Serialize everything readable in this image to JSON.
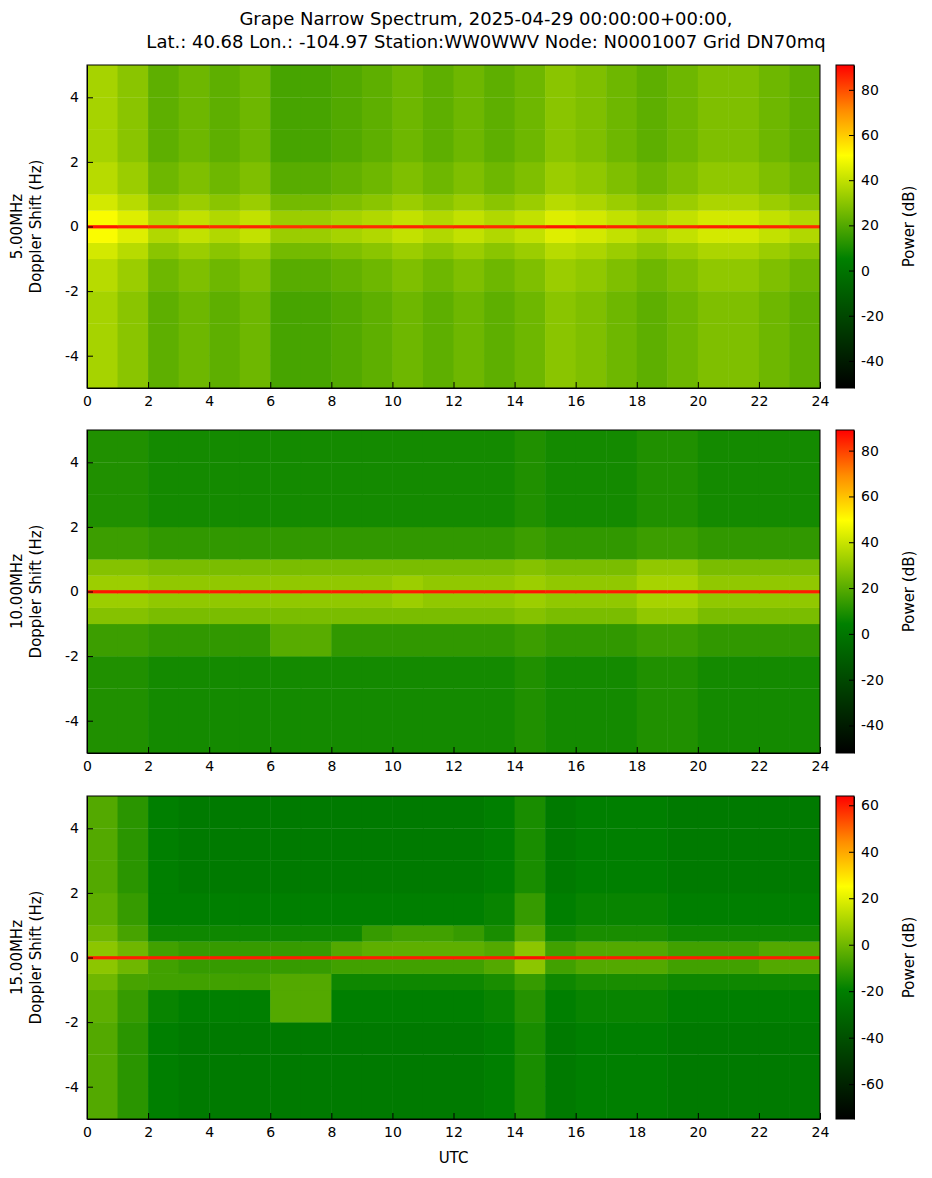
{
  "chart_data": [
    {
      "type": "heatmap",
      "title": "Grape Narrow Spectrum, 2025-04-29 00:00:00+00:00,",
      "subtitle": "Lat.: 40.68 Lon.: -104.97 Station:WW0WWV Node: N0001007 Grid DN70mq",
      "ylabel": [
        "5.00MHz",
        "Doppler Shift (Hz)"
      ],
      "xlim": [
        0,
        24
      ],
      "xticks": [
        0,
        2,
        4,
        6,
        8,
        10,
        12,
        14,
        16,
        18,
        20,
        22,
        24
      ],
      "ylim": [
        -5,
        5
      ],
      "yticks": [
        -4,
        -2,
        0,
        2,
        4
      ],
      "x_edges": [
        0,
        1,
        2,
        3,
        4,
        5,
        6,
        7,
        8,
        9,
        10,
        11,
        12,
        13,
        14,
        15,
        16,
        17,
        18,
        19,
        20,
        21,
        22,
        23,
        24
      ],
      "y_edges": [
        -5,
        -4,
        -3,
        -2,
        -1,
        -0.5,
        -0.05,
        0.05,
        0.5,
        1,
        2,
        3,
        4,
        5
      ],
      "cells": [
        [
          35,
          30,
          22,
          25,
          22,
          25,
          18,
          18,
          20,
          22,
          25,
          22,
          25,
          22,
          25,
          30,
          28,
          25,
          22,
          25,
          28,
          28,
          25,
          22
        ],
        [
          35,
          30,
          22,
          25,
          22,
          25,
          18,
          18,
          20,
          22,
          25,
          22,
          25,
          22,
          25,
          30,
          28,
          25,
          22,
          25,
          28,
          28,
          25,
          22
        ],
        [
          35,
          30,
          22,
          25,
          22,
          25,
          18,
          18,
          20,
          22,
          25,
          22,
          25,
          22,
          25,
          30,
          28,
          25,
          22,
          25,
          28,
          28,
          25,
          22
        ],
        [
          38,
          33,
          25,
          28,
          25,
          28,
          21,
          21,
          23,
          25,
          28,
          25,
          28,
          25,
          28,
          33,
          31,
          28,
          25,
          28,
          31,
          31,
          28,
          25
        ],
        [
          43,
          38,
          30,
          33,
          30,
          33,
          26,
          26,
          28,
          30,
          33,
          30,
          33,
          30,
          33,
          38,
          36,
          33,
          30,
          33,
          36,
          36,
          33,
          30
        ],
        [
          50,
          45,
          37,
          40,
          37,
          40,
          33,
          33,
          35,
          37,
          40,
          37,
          40,
          37,
          40,
          45,
          43,
          40,
          37,
          40,
          43,
          43,
          40,
          37
        ],
        [
          88,
          86,
          85,
          86,
          85,
          86,
          84,
          84,
          85,
          85,
          86,
          85,
          86,
          85,
          86,
          88,
          87,
          86,
          85,
          86,
          87,
          87,
          86,
          85
        ],
        [
          50,
          45,
          37,
          40,
          37,
          40,
          33,
          33,
          35,
          37,
          40,
          37,
          40,
          37,
          40,
          45,
          43,
          40,
          37,
          40,
          43,
          43,
          40,
          37
        ],
        [
          43,
          38,
          30,
          33,
          30,
          33,
          26,
          26,
          28,
          30,
          33,
          30,
          33,
          30,
          33,
          38,
          36,
          33,
          30,
          33,
          36,
          36,
          33,
          30
        ],
        [
          38,
          33,
          25,
          28,
          25,
          28,
          21,
          21,
          23,
          25,
          28,
          25,
          28,
          25,
          28,
          33,
          31,
          28,
          25,
          28,
          31,
          31,
          28,
          25
        ],
        [
          35,
          30,
          22,
          25,
          22,
          25,
          18,
          18,
          20,
          22,
          25,
          22,
          25,
          22,
          25,
          30,
          28,
          25,
          22,
          25,
          28,
          28,
          25,
          22
        ],
        [
          35,
          30,
          22,
          25,
          22,
          25,
          18,
          18,
          20,
          22,
          25,
          22,
          25,
          22,
          25,
          30,
          28,
          25,
          22,
          25,
          28,
          28,
          25,
          22
        ],
        [
          35,
          30,
          22,
          25,
          22,
          25,
          18,
          18,
          20,
          22,
          25,
          22,
          25,
          22,
          25,
          30,
          28,
          25,
          22,
          25,
          28,
          28,
          25,
          22
        ]
      ],
      "colorbar": {
        "label": "Power (dB)",
        "range": [
          -52,
          91
        ],
        "ticks": [
          -40,
          -20,
          0,
          20,
          40,
          60,
          80
        ]
      }
    },
    {
      "type": "heatmap",
      "ylabel": [
        "10.00MHz",
        "Doppler Shift (Hz)"
      ],
      "xlim": [
        0,
        24
      ],
      "xticks": [
        0,
        2,
        4,
        6,
        8,
        10,
        12,
        14,
        16,
        18,
        20,
        22,
        24
      ],
      "ylim": [
        -5,
        5
      ],
      "yticks": [
        -4,
        -2,
        0,
        2,
        4
      ],
      "x_edges": [
        0,
        1,
        2,
        3,
        4,
        5,
        6,
        7,
        8,
        9,
        10,
        11,
        12,
        13,
        14,
        15,
        16,
        17,
        18,
        19,
        20,
        21,
        22,
        23,
        24
      ],
      "y_edges": [
        -5,
        -4,
        -3,
        -2,
        -1,
        -0.5,
        -0.05,
        0.05,
        0.5,
        1,
        2,
        3,
        4,
        5
      ],
      "cells": [
        [
          10,
          10,
          8,
          8,
          8,
          8,
          8,
          8,
          8,
          8,
          8,
          8,
          8,
          8,
          10,
          8,
          8,
          8,
          10,
          10,
          8,
          8,
          8,
          8
        ],
        [
          10,
          10,
          8,
          8,
          8,
          8,
          8,
          8,
          8,
          8,
          8,
          8,
          8,
          8,
          10,
          8,
          8,
          8,
          10,
          10,
          8,
          8,
          8,
          8
        ],
        [
          10,
          10,
          8,
          8,
          8,
          8,
          8,
          8,
          8,
          8,
          8,
          8,
          8,
          8,
          10,
          8,
          8,
          8,
          10,
          10,
          8,
          8,
          8,
          8
        ],
        [
          15,
          15,
          13,
          13,
          13,
          13,
          20,
          20,
          13,
          13,
          13,
          13,
          13,
          13,
          15,
          13,
          13,
          13,
          15,
          15,
          13,
          13,
          13,
          13
        ],
        [
          28,
          28,
          26,
          26,
          26,
          26,
          26,
          26,
          26,
          26,
          26,
          26,
          26,
          26,
          28,
          26,
          26,
          26,
          30,
          30,
          26,
          26,
          26,
          26
        ],
        [
          32,
          32,
          30,
          30,
          30,
          30,
          30,
          30,
          30,
          30,
          32,
          30,
          30,
          30,
          32,
          30,
          30,
          30,
          34,
          34,
          30,
          30,
          30,
          30
        ],
        [
          86,
          86,
          85,
          85,
          85,
          85,
          85,
          85,
          85,
          85,
          85,
          85,
          85,
          85,
          86,
          85,
          85,
          85,
          86,
          86,
          85,
          85,
          85,
          85
        ],
        [
          32,
          32,
          30,
          30,
          30,
          30,
          30,
          30,
          30,
          30,
          32,
          30,
          30,
          30,
          32,
          30,
          30,
          30,
          34,
          34,
          30,
          30,
          30,
          30
        ],
        [
          28,
          28,
          26,
          26,
          26,
          26,
          26,
          26,
          26,
          26,
          26,
          26,
          26,
          26,
          28,
          26,
          26,
          26,
          30,
          30,
          26,
          26,
          26,
          26
        ],
        [
          15,
          15,
          13,
          13,
          13,
          13,
          13,
          13,
          13,
          13,
          13,
          13,
          13,
          13,
          15,
          13,
          13,
          13,
          15,
          15,
          13,
          13,
          13,
          13
        ],
        [
          10,
          10,
          8,
          8,
          8,
          8,
          8,
          8,
          8,
          8,
          8,
          8,
          8,
          8,
          10,
          8,
          8,
          8,
          10,
          10,
          8,
          8,
          8,
          8
        ],
        [
          10,
          10,
          8,
          8,
          8,
          8,
          8,
          8,
          8,
          8,
          8,
          8,
          8,
          8,
          10,
          8,
          8,
          8,
          10,
          10,
          8,
          8,
          8,
          8
        ],
        [
          10,
          10,
          8,
          8,
          8,
          8,
          8,
          8,
          8,
          8,
          8,
          8,
          8,
          8,
          10,
          8,
          8,
          8,
          10,
          10,
          8,
          8,
          8,
          8
        ]
      ],
      "colorbar": {
        "label": "Power (dB)",
        "range": [
          -52,
          89
        ],
        "ticks": [
          -40,
          -20,
          0,
          20,
          40,
          60,
          80
        ]
      }
    },
    {
      "type": "heatmap",
      "ylabel": [
        "15.00MHz",
        "Doppler Shift (Hz)"
      ],
      "xlabel": "UTC",
      "xlim": [
        0,
        24
      ],
      "xticks": [
        0,
        2,
        4,
        6,
        8,
        10,
        12,
        14,
        16,
        18,
        20,
        22,
        24
      ],
      "ylim": [
        -5,
        5
      ],
      "yticks": [
        -4,
        -2,
        0,
        2,
        4
      ],
      "x_edges": [
        0,
        1,
        2,
        3,
        4,
        5,
        6,
        7,
        8,
        9,
        10,
        11,
        12,
        13,
        14,
        15,
        16,
        17,
        18,
        19,
        20,
        21,
        22,
        23,
        24
      ],
      "y_edges": [
        -5,
        -4,
        -3,
        -2,
        -1,
        -0.5,
        -0.05,
        0.05,
        0.5,
        1,
        2,
        3,
        4,
        5
      ],
      "cells": [
        [
          -5,
          -12,
          -20,
          -22,
          -22,
          -22,
          -22,
          -22,
          -22,
          -22,
          -22,
          -22,
          -22,
          -20,
          -15,
          -22,
          -20,
          -20,
          -20,
          -22,
          -22,
          -22,
          -22,
          -22
        ],
        [
          -5,
          -12,
          -20,
          -22,
          -22,
          -22,
          -22,
          -22,
          -22,
          -22,
          -22,
          -22,
          -22,
          -20,
          -15,
          -22,
          -20,
          -20,
          -20,
          -22,
          -22,
          -22,
          -22,
          -22
        ],
        [
          -5,
          -12,
          -20,
          -22,
          -22,
          -22,
          -22,
          -22,
          -22,
          -22,
          -22,
          -22,
          -22,
          -20,
          -15,
          -22,
          -20,
          -20,
          -20,
          -22,
          -22,
          -22,
          -22,
          -22
        ],
        [
          -3,
          -10,
          -18,
          -20,
          -20,
          -20,
          -5,
          -5,
          -20,
          -20,
          -20,
          -20,
          -20,
          -18,
          -13,
          -20,
          -18,
          -18,
          -18,
          -20,
          -20,
          -20,
          -20,
          -20
        ],
        [
          0,
          -7,
          -8,
          -8,
          -8,
          -8,
          -5,
          -5,
          -17,
          -17,
          -17,
          -17,
          -17,
          -15,
          -10,
          -17,
          -15,
          -15,
          -15,
          -17,
          -17,
          -17,
          -17,
          -17
        ],
        [
          5,
          0,
          -8,
          -10,
          -10,
          -10,
          -10,
          -10,
          -8,
          -8,
          -8,
          -8,
          -8,
          -5,
          5,
          -8,
          -5,
          -5,
          -5,
          -8,
          -8,
          -8,
          -5,
          -5
        ],
        [
          60,
          60,
          60,
          60,
          60,
          60,
          60,
          60,
          60,
          60,
          60,
          60,
          60,
          60,
          62,
          60,
          60,
          60,
          60,
          60,
          60,
          60,
          60,
          60
        ],
        [
          5,
          0,
          -8,
          -10,
          -10,
          -10,
          -10,
          -10,
          -5,
          -3,
          -3,
          -3,
          -3,
          -5,
          5,
          -8,
          -5,
          -5,
          -5,
          -8,
          -8,
          -8,
          -5,
          -5
        ],
        [
          0,
          -7,
          -17,
          -17,
          -17,
          -17,
          -17,
          -17,
          -17,
          -10,
          -8,
          -8,
          -10,
          -15,
          -5,
          -17,
          -15,
          -15,
          -15,
          -17,
          -17,
          -17,
          -17,
          -17
        ],
        [
          -3,
          -10,
          -20,
          -20,
          -20,
          -20,
          -20,
          -20,
          -20,
          -20,
          -20,
          -20,
          -20,
          -18,
          -10,
          -20,
          -18,
          -18,
          -18,
          -20,
          -20,
          -20,
          -20,
          -20
        ],
        [
          -5,
          -12,
          -20,
          -22,
          -22,
          -22,
          -22,
          -22,
          -22,
          -22,
          -22,
          -22,
          -22,
          -20,
          -15,
          -22,
          -20,
          -20,
          -20,
          -22,
          -22,
          -22,
          -22,
          -22
        ],
        [
          -5,
          -12,
          -20,
          -22,
          -22,
          -22,
          -22,
          -22,
          -22,
          -22,
          -22,
          -22,
          -22,
          -20,
          -15,
          -22,
          -20,
          -20,
          -20,
          -22,
          -22,
          -22,
          -22,
          -22
        ],
        [
          -5,
          -12,
          -20,
          -22,
          -22,
          -22,
          -22,
          -22,
          -22,
          -22,
          -22,
          -22,
          -22,
          -20,
          -15,
          -22,
          -20,
          -20,
          -20,
          -22,
          -22,
          -22,
          -22,
          -22
        ]
      ],
      "colorbar": {
        "label": "Power (dB)",
        "range": [
          -75,
          64
        ],
        "ticks": [
          -60,
          -40,
          -20,
          0,
          20,
          40,
          60
        ]
      }
    }
  ]
}
